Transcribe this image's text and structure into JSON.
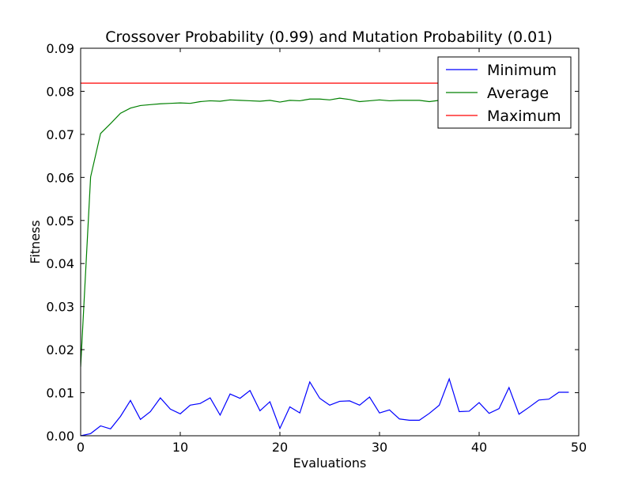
{
  "chart_data": {
    "type": "line",
    "title": "Crossover Probability (0.99) and Mutation Probability (0.01)",
    "xlabel": "Evaluations",
    "ylabel": "Fitness",
    "xlim": [
      0,
      50
    ],
    "ylim": [
      0,
      0.09
    ],
    "grid": false,
    "legend_position": "top-right",
    "x_ticks": [
      "0",
      "10",
      "20",
      "30",
      "40",
      "50"
    ],
    "y_ticks": [
      "0.00",
      "0.01",
      "0.02",
      "0.03",
      "0.04",
      "0.05",
      "0.06",
      "0.07",
      "0.08",
      "0.09"
    ],
    "x": [
      0,
      1,
      2,
      3,
      4,
      5,
      6,
      7,
      8,
      9,
      10,
      11,
      12,
      13,
      14,
      15,
      16,
      17,
      18,
      19,
      20,
      21,
      22,
      23,
      24,
      25,
      26,
      27,
      28,
      29,
      30,
      31,
      32,
      33,
      34,
      35,
      36,
      37,
      38,
      39,
      40,
      41,
      42,
      43,
      44,
      45,
      46,
      47,
      48,
      49
    ],
    "series": [
      {
        "name": "Minimum",
        "color": "#0000ff",
        "values": [
          0.0,
          0.0005,
          0.0023,
          0.0016,
          0.0045,
          0.0082,
          0.0038,
          0.0056,
          0.0088,
          0.0062,
          0.0051,
          0.0071,
          0.0075,
          0.0088,
          0.0048,
          0.0097,
          0.0087,
          0.0105,
          0.0058,
          0.0079,
          0.0017,
          0.0067,
          0.0053,
          0.0125,
          0.0087,
          0.0071,
          0.008,
          0.0081,
          0.0071,
          0.009,
          0.0053,
          0.006,
          0.0039,
          0.0036,
          0.0036,
          0.0052,
          0.0071,
          0.0132,
          0.0056,
          0.0057,
          0.0077,
          0.0052,
          0.0063,
          0.0112,
          0.005,
          0.0066,
          0.0083,
          0.0085,
          0.0101,
          0.0101
        ]
      },
      {
        "name": "Average",
        "color": "#008000",
        "values": [
          0.016,
          0.0601,
          0.0702,
          0.0725,
          0.0749,
          0.0761,
          0.0767,
          0.0769,
          0.0771,
          0.0772,
          0.0773,
          0.0772,
          0.0776,
          0.0778,
          0.0777,
          0.078,
          0.0779,
          0.0778,
          0.0777,
          0.0779,
          0.0775,
          0.0779,
          0.0778,
          0.0782,
          0.0782,
          0.078,
          0.0784,
          0.0781,
          0.0776,
          0.0778,
          0.078,
          0.0778,
          0.0779,
          0.0779,
          0.0779,
          0.0776,
          0.0779,
          0.078,
          0.078,
          0.078,
          0.078,
          0.078,
          0.078,
          0.078,
          0.078,
          0.078,
          0.078,
          0.078,
          0.078,
          0.078
        ]
      },
      {
        "name": "Maximum",
        "color": "#ff0000",
        "values": [
          0.0819,
          0.0819,
          0.0819,
          0.0819,
          0.0819,
          0.0819,
          0.0819,
          0.0819,
          0.0819,
          0.0819,
          0.0819,
          0.0819,
          0.0819,
          0.0819,
          0.0819,
          0.0819,
          0.0819,
          0.0819,
          0.0819,
          0.0819,
          0.0819,
          0.0819,
          0.0819,
          0.0819,
          0.0819,
          0.0819,
          0.0819,
          0.0819,
          0.0819,
          0.0819,
          0.0819,
          0.0819,
          0.0819,
          0.0819,
          0.0819,
          0.0819,
          0.0819,
          0.0819,
          0.0819,
          0.0819,
          0.0819,
          0.0819,
          0.0819,
          0.0819,
          0.0819,
          0.0819,
          0.0819,
          0.0819,
          0.0819,
          0.0819
        ]
      }
    ]
  }
}
